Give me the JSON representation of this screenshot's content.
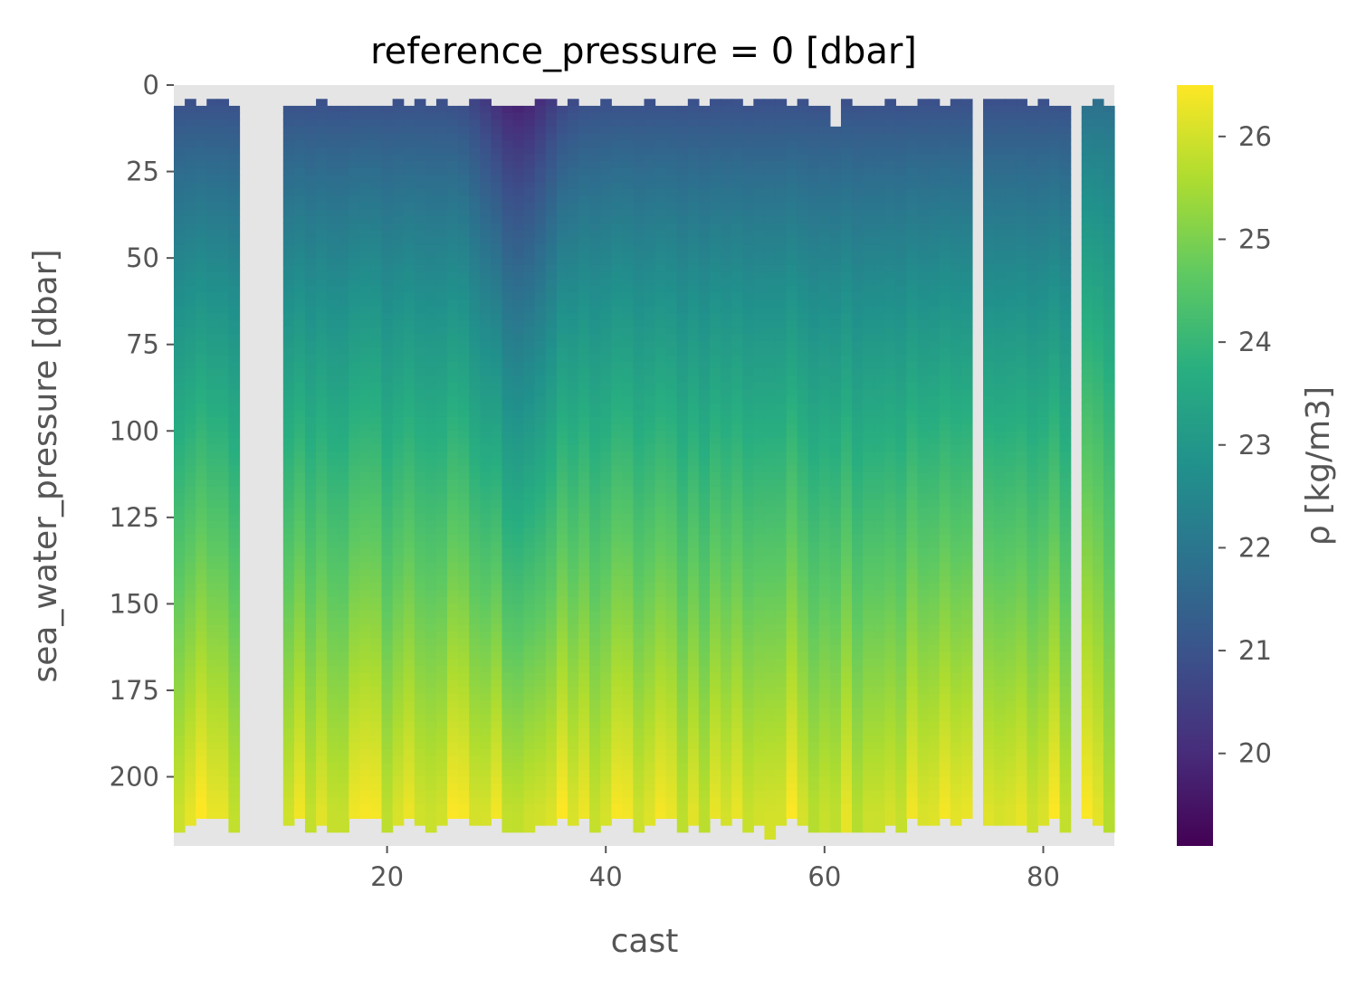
{
  "chart_data": {
    "type": "heatmap",
    "title": "reference_pressure = 0 [dbar]",
    "xlabel": "cast",
    "ylabel": "sea_water_pressure [dbar]",
    "xlim": [
      1,
      86
    ],
    "ylim": [
      220,
      0
    ],
    "xticks": [
      20,
      40,
      60,
      80
    ],
    "yticks": [
      0,
      25,
      50,
      75,
      100,
      125,
      150,
      175,
      200
    ],
    "colorbar": {
      "label": "ρ [kg/m3]",
      "colormap": "viridis",
      "range": [
        19.1,
        26.5
      ],
      "ticks": [
        20,
        21,
        22,
        23,
        24,
        25,
        26
      ]
    },
    "missing_cast_ranges": [
      [
        7,
        10
      ],
      [
        74,
        74
      ],
      [
        83,
        83
      ]
    ],
    "surface_start_dbar": 6,
    "bottom_end_dbar": 216,
    "axes_background": "#e5e5e5",
    "description_of_field": "density increases with depth from ~20 kg/m3 near surface to ~26 kg/m3 near 210 dbar; lowest near-surface values around casts 29-35"
  }
}
